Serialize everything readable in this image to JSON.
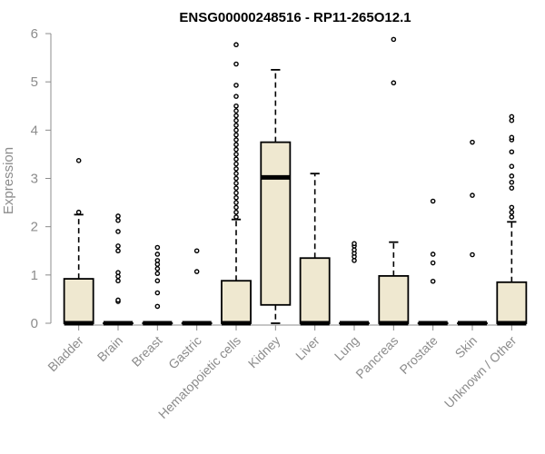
{
  "chart_data": {
    "type": "boxplot",
    "title": "ENSG00000248516 - RP11-265O12.1",
    "ylabel": "Expression",
    "xlabel": "",
    "ylim": [
      0,
      6
    ],
    "yticks": [
      "0",
      "1",
      "2",
      "3",
      "4",
      "5",
      "6"
    ],
    "grid": false,
    "colors": {
      "box_fill": "#efe8d0",
      "stroke": "#000000",
      "axis": "#8c8c8c"
    },
    "categories": [
      "Bladder",
      "Brain",
      "Breast",
      "Gastric",
      "Hematopoietic cells",
      "Kidney",
      "Liver",
      "Lung",
      "Pancreas",
      "Prostate",
      "Skin",
      "Unknown / Other"
    ],
    "boxes": [
      {
        "q1": 0,
        "median": 0,
        "q3": 0.92,
        "whisker_low": 0,
        "whisker_high": 2.25,
        "outliers": [
          2.3,
          3.37
        ]
      },
      {
        "q1": 0,
        "median": 0,
        "q3": 0,
        "whisker_low": 0,
        "whisker_high": 0,
        "outliers": [
          0.45,
          0.48,
          0.88,
          0.97,
          1.05,
          1.5,
          1.6,
          1.9,
          2.13,
          2.22
        ]
      },
      {
        "q1": 0,
        "median": 0,
        "q3": 0,
        "whisker_low": 0,
        "whisker_high": 0,
        "outliers": [
          0.35,
          0.63,
          0.88,
          1.03,
          1.13,
          1.22,
          1.3,
          1.43,
          1.57
        ]
      },
      {
        "q1": 0,
        "median": 0,
        "q3": 0,
        "whisker_low": 0,
        "whisker_high": 0,
        "outliers": [
          1.07,
          1.5
        ]
      },
      {
        "q1": 0,
        "median": 0,
        "q3": 0.88,
        "whisker_low": 0,
        "whisker_high": 2.15,
        "outliers": [
          2.2,
          2.3,
          2.4,
          2.5,
          2.6,
          2.7,
          2.8,
          2.9,
          3.0,
          3.1,
          3.2,
          3.3,
          3.4,
          3.5,
          3.6,
          3.7,
          3.8,
          3.9,
          4.0,
          4.1,
          4.2,
          4.3,
          4.4,
          4.5,
          4.7,
          4.93,
          5.37,
          5.77
        ]
      },
      {
        "q1": 0.38,
        "median": 3.02,
        "q3": 3.75,
        "whisker_low": 0,
        "whisker_high": 5.25,
        "outliers": []
      },
      {
        "q1": 0,
        "median": 0,
        "q3": 1.35,
        "whisker_low": 0,
        "whisker_high": 3.1,
        "outliers": []
      },
      {
        "q1": 0,
        "median": 0,
        "q3": 0,
        "whisker_low": 0,
        "whisker_high": 0,
        "outliers": [
          1.3,
          1.38,
          1.45,
          1.52,
          1.6,
          1.65
        ]
      },
      {
        "q1": 0,
        "median": 0,
        "q3": 0.98,
        "whisker_low": 0,
        "whisker_high": 1.68,
        "outliers": [
          4.98,
          5.88
        ]
      },
      {
        "q1": 0,
        "median": 0,
        "q3": 0,
        "whisker_low": 0,
        "whisker_high": 0,
        "outliers": [
          0.87,
          1.25,
          1.43,
          2.53
        ]
      },
      {
        "q1": 0,
        "median": 0,
        "q3": 0,
        "whisker_low": 0,
        "whisker_high": 0,
        "outliers": [
          1.42,
          2.65,
          3.75
        ]
      },
      {
        "q1": 0,
        "median": 0,
        "q3": 0.85,
        "whisker_low": 0,
        "whisker_high": 2.1,
        "outliers": [
          2.2,
          2.3,
          2.4,
          2.8,
          2.92,
          3.05,
          3.25,
          3.55,
          3.8,
          3.85,
          4.2,
          4.28
        ]
      }
    ]
  }
}
